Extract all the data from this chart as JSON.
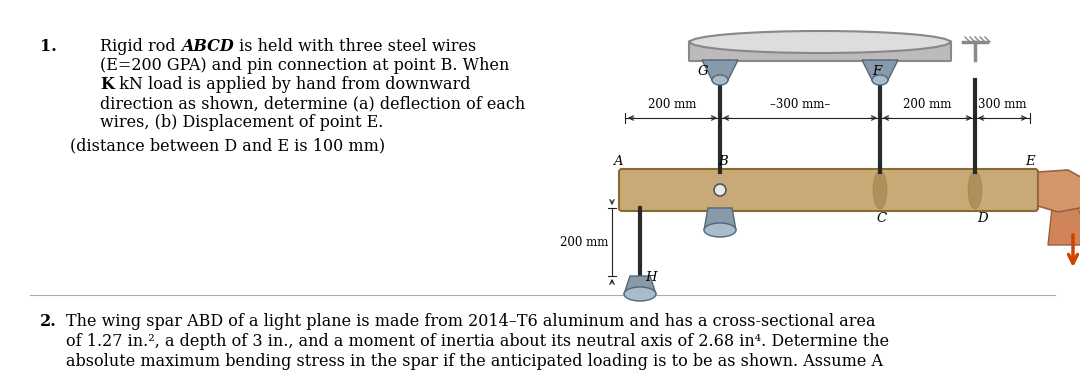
{
  "bg_color": "#ffffff",
  "text_color": "#000000",
  "fig_width": 10.8,
  "fig_height": 3.9,
  "p1_number": "1.",
  "p1_line1a": "Rigid rod ",
  "p1_line1b": "ABCD",
  "p1_line1c": " is held with three steel wires",
  "p1_line2": "(E=200 GPA) and pin connection at point B. When",
  "p1_line3a": "K",
  "p1_line3b": " kN load is applied by hand from downward",
  "p1_line4": "direction as shown, determine (a) deflection of each",
  "p1_line5": "wires, (b) Displacement of point E.",
  "p1_line6": "(distance between D and E is 100 mm)",
  "p2_number": "2.",
  "p2_line1": "The wing spar ABD of a light plane is made from 2014–T6 aluminum and has a cross-sectional area",
  "p2_line2": "of 1.27 in.², a depth of 3 in., and a moment of inertia about its neutral axis of 2.68 in⁴. Determine the",
  "p2_line3": "absolute maximum bending stress in the spar if the anticipated loading is to be as shown. Assume A",
  "rod_color": "#c8aa78",
  "rod_dark": "#8a6a30",
  "wire_color": "#2a2a2a",
  "mount_top_color": "#8899aa",
  "mount_bot_color": "#aabbcc",
  "ceiling_color": "#bbbbbb",
  "ceiling_dark": "#888888",
  "hand_color": "#d4956a",
  "hand_dark": "#9a6040",
  "arrow_color": "#cc4400",
  "dim_color": "#222222"
}
